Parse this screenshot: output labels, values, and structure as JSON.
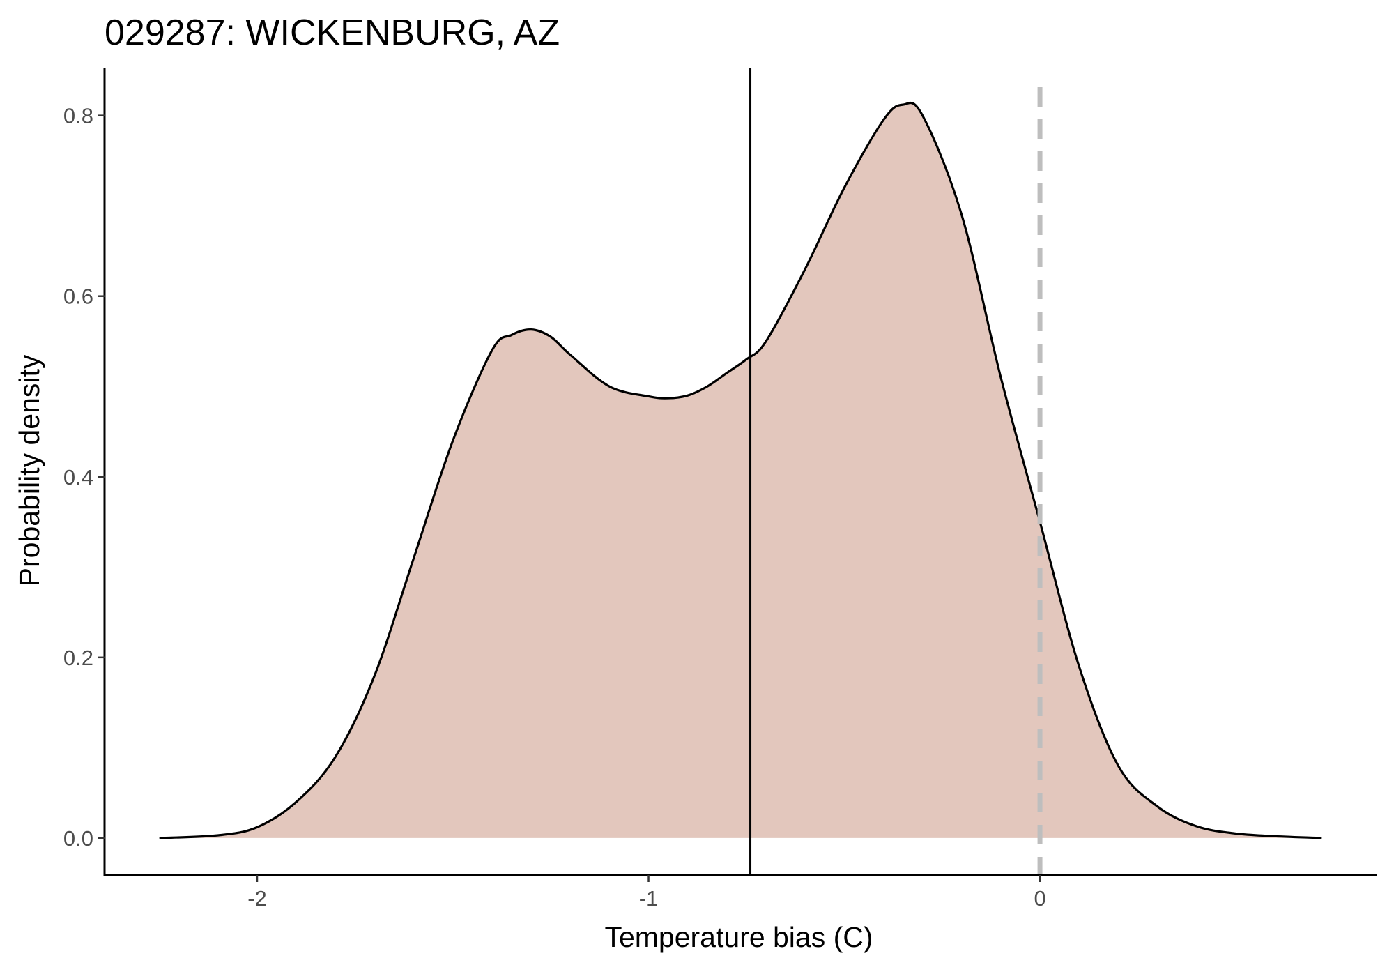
{
  "chart_data": {
    "type": "area",
    "title": "029287: WICKENBURG, AZ",
    "xlabel": "Temperature bias (C)",
    "ylabel": "Probability density",
    "xlim": [
      -2.39,
      0.86
    ],
    "ylim": [
      -0.041,
      0.853
    ],
    "x_ticks": [
      -2,
      -1,
      0
    ],
    "x_tick_labels": [
      "-2",
      "-1",
      "0"
    ],
    "y_ticks": [
      0.0,
      0.2,
      0.4,
      0.6,
      0.8
    ],
    "y_tick_labels": [
      "0.0",
      "0.2",
      "0.4",
      "0.6",
      "0.8"
    ],
    "grid": false,
    "fill_color": "#e3c7bd",
    "line_color": "#000000",
    "reference_line_color": "#bebebe",
    "series": [
      {
        "x": [
          -2.25,
          -2.1,
          -2.0,
          -1.9,
          -1.8,
          -1.7,
          -1.6,
          -1.5,
          -1.4,
          -1.35,
          -1.3,
          -1.25,
          -1.2,
          -1.1,
          -1.0,
          -0.95,
          -0.9,
          -0.85,
          -0.8,
          -0.75,
          -0.7,
          -0.6,
          -0.5,
          -0.4,
          -0.35,
          -0.3,
          -0.2,
          -0.1,
          0.0,
          0.1,
          0.2,
          0.3,
          0.4,
          0.5,
          0.6,
          0.72
        ],
        "y": [
          0.0,
          0.003,
          0.012,
          0.04,
          0.09,
          0.18,
          0.31,
          0.44,
          0.54,
          0.557,
          0.563,
          0.555,
          0.535,
          0.5,
          0.489,
          0.487,
          0.49,
          0.5,
          0.515,
          0.53,
          0.55,
          0.63,
          0.72,
          0.795,
          0.812,
          0.8,
          0.69,
          0.51,
          0.35,
          0.19,
          0.08,
          0.035,
          0.013,
          0.005,
          0.002,
          0.0
        ]
      }
    ],
    "vertical_lines": [
      {
        "x": -0.74,
        "style": "solid"
      },
      {
        "x": 0.0,
        "style": "dashed"
      }
    ]
  }
}
